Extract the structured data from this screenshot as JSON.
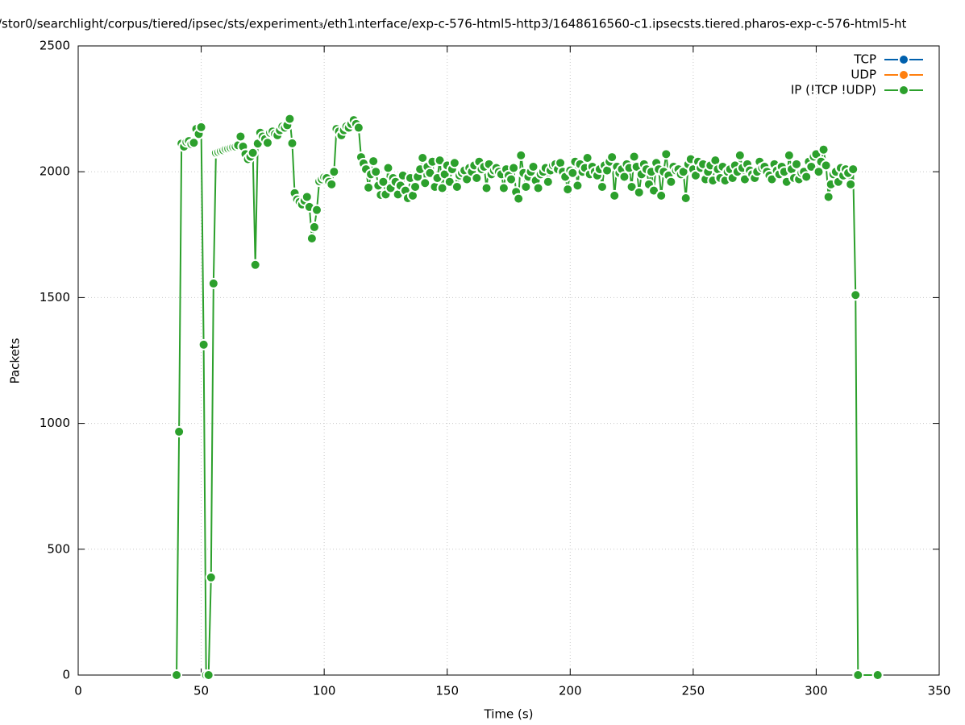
{
  "chart_data": {
    "type": "line",
    "title": "/stor0/searchlight/corpus/tiered/ipsec/sts/experiment₃/eth1ᵢnterface/exp-c-576-html5-http3/1648616560-c1.ipsecsts.tiered.pharos-exp-c-576-html5-ht",
    "x_label": "Time (s)",
    "y_label": "Packets",
    "xlim": [
      0,
      350
    ],
    "xticks": [
      0,
      50,
      100,
      150,
      200,
      250,
      300,
      350
    ],
    "ylim": [
      0,
      2500
    ],
    "yticks": [
      0,
      500,
      1000,
      1500,
      2000,
      2500
    ],
    "grid": true,
    "legend": "top-right",
    "series": [
      {
        "name": "TCP",
        "color": "#0060ad",
        "x": [],
        "values": []
      },
      {
        "name": "UDP",
        "color": "#ff7f0e",
        "x": [],
        "values": []
      },
      {
        "name": "IP (!TCP  !UDP)",
        "color": "#2ca02c",
        "x": [
          40,
          41,
          42,
          43,
          44,
          45,
          46,
          47,
          48,
          49,
          50,
          51,
          52,
          53,
          54,
          55,
          56,
          57,
          58,
          59,
          60,
          61,
          62,
          63,
          64,
          65,
          66,
          67,
          68,
          69,
          70,
          71,
          72,
          73,
          74,
          75,
          76,
          77,
          78,
          79,
          80,
          81,
          82,
          83,
          84,
          85,
          86,
          87,
          88,
          89,
          90,
          91,
          92,
          93,
          94,
          95,
          96,
          97,
          98,
          99,
          100,
          101,
          102,
          103,
          104,
          105,
          106,
          107,
          108,
          109,
          110,
          111,
          112,
          113,
          114,
          115,
          116,
          117,
          118,
          119,
          120,
          121,
          122,
          123,
          124,
          125,
          126,
          127,
          128,
          129,
          130,
          131,
          132,
          133,
          134,
          135,
          136,
          137,
          138,
          139,
          140,
          141,
          142,
          143,
          144,
          145,
          146,
          147,
          148,
          149,
          150,
          151,
          152,
          153,
          154,
          155,
          156,
          157,
          158,
          159,
          160,
          161,
          162,
          163,
          164,
          165,
          166,
          167,
          168,
          169,
          170,
          171,
          172,
          173,
          174,
          175,
          176,
          177,
          178,
          179,
          180,
          181,
          182,
          183,
          184,
          185,
          186,
          187,
          188,
          189,
          190,
          191,
          192,
          193,
          194,
          195,
          196,
          197,
          198,
          199,
          200,
          201,
          202,
          203,
          204,
          205,
          206,
          207,
          208,
          209,
          210,
          211,
          212,
          213,
          214,
          215,
          216,
          217,
          218,
          219,
          220,
          221,
          222,
          223,
          224,
          225,
          226,
          227,
          228,
          229,
          230,
          231,
          232,
          233,
          234,
          235,
          236,
          237,
          238,
          239,
          240,
          241,
          242,
          243,
          244,
          245,
          246,
          247,
          248,
          249,
          250,
          251,
          252,
          253,
          254,
          255,
          256,
          257,
          258,
          259,
          260,
          261,
          262,
          263,
          264,
          265,
          266,
          267,
          268,
          269,
          270,
          271,
          272,
          273,
          274,
          275,
          276,
          277,
          278,
          279,
          280,
          281,
          282,
          283,
          284,
          285,
          286,
          287,
          288,
          289,
          290,
          291,
          292,
          293,
          294,
          295,
          296,
          297,
          298,
          299,
          300,
          301,
          302,
          303,
          304,
          305,
          306,
          307,
          308,
          309,
          310,
          311,
          312,
          313,
          314,
          315,
          316,
          317,
          325
        ],
        "values": [
          0,
          967,
          2112,
          2100,
          2118,
          2122,
          2110,
          2115,
          2170,
          2150,
          2177,
          1313,
          0,
          0,
          388,
          1556,
          2075,
          2078,
          2082,
          2085,
          2090,
          2092,
          2095,
          2098,
          2100,
          2105,
          2140,
          2100,
          2070,
          2050,
          2060,
          2075,
          1630,
          2112,
          2155,
          2140,
          2130,
          2115,
          2155,
          2160,
          2150,
          2145,
          2165,
          2180,
          2175,
          2185,
          2210,
          2113,
          1915,
          1890,
          1880,
          1870,
          1885,
          1900,
          1860,
          1735,
          1780,
          1848,
          1962,
          1970,
          1978,
          1975,
          1960,
          1950,
          2000,
          2170,
          2160,
          2145,
          2165,
          2180,
          2175,
          2190,
          2205,
          2190,
          2175,
          2058,
          2033,
          2010,
          1937,
          1990,
          2042,
          2000,
          1945,
          1908,
          1960,
          1910,
          2015,
          1935,
          1975,
          1960,
          1910,
          1945,
          1985,
          1925,
          1895,
          1975,
          1905,
          1940,
          1980,
          2010,
          2055,
          1955,
          2020,
          1995,
          2040,
          1940,
          1975,
          2045,
          1935,
          1990,
          2025,
          1960,
          2010,
          2035,
          1940,
          1985,
          1995,
          2005,
          1970,
          2015,
          2000,
          2025,
          1975,
          2040,
          2010,
          2020,
          1935,
          2030,
          1990,
          2005,
          2015,
          2000,
          1990,
          1935,
          2010,
          1985,
          1970,
          2015,
          1920,
          1893,
          2065,
          1995,
          1940,
          1980,
          2000,
          2020,
          1965,
          1935,
          1990,
          2000,
          2015,
          1960,
          2005,
          2025,
          2030,
          2010,
          2035,
          2000,
          1980,
          1930,
          2005,
          1995,
          2040,
          1945,
          2030,
          2000,
          2015,
          2055,
          1990,
          2020,
          2000,
          1985,
          2010,
          1940,
          2025,
          2005,
          2040,
          2058,
          1905,
          2020,
          1995,
          2010,
          1980,
          2030,
          2015,
          1940,
          2060,
          2020,
          1918,
          1990,
          2030,
          2010,
          1950,
          2000,
          1925,
          2035,
          2010,
          1905,
          2000,
          2070,
          1985,
          1960,
          2020,
          2005,
          2010,
          1990,
          2000,
          1895,
          2030,
          2050,
          2010,
          1985,
          2040,
          2015,
          2030,
          1970,
          2000,
          2025,
          1965,
          2045,
          2010,
          1975,
          2020,
          1965,
          2000,
          2010,
          1975,
          2025,
          2000,
          2065,
          2015,
          1970,
          2030,
          2005,
          1990,
          1975,
          2000,
          2040,
          2015,
          2020,
          2000,
          1985,
          1970,
          2030,
          2005,
          1990,
          2020,
          2000,
          1960,
          2065,
          2010,
          1975,
          2030,
          1970,
          1995,
          2000,
          1980,
          2040,
          2020,
          2060,
          2070,
          2000,
          2040,
          2088,
          2025,
          1900,
          1950,
          1990,
          2000,
          1960,
          2015,
          1985,
          2010,
          1995,
          1950,
          2010,
          1510,
          0,
          0
        ]
      }
    ]
  }
}
